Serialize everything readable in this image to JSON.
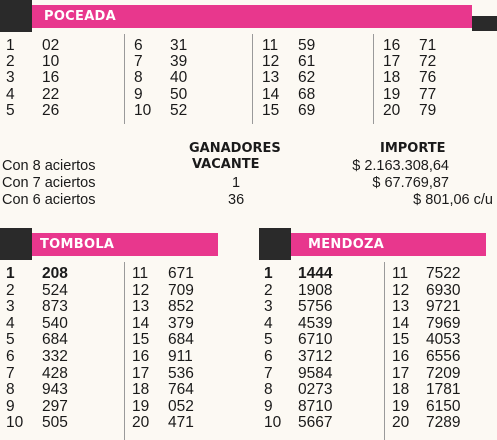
{
  "poceada": {
    "title": "POCEADA",
    "columns": [
      [
        [
          "1",
          "02"
        ],
        [
          "2",
          "10"
        ],
        [
          "3",
          "16"
        ],
        [
          "4",
          "22"
        ],
        [
          "5",
          "26"
        ]
      ],
      [
        [
          "6",
          "31"
        ],
        [
          "7",
          "39"
        ],
        [
          "8",
          "40"
        ],
        [
          "9",
          "50"
        ],
        [
          "10",
          "52"
        ]
      ],
      [
        [
          "11",
          "59"
        ],
        [
          "12",
          "61"
        ],
        [
          "13",
          "62"
        ],
        [
          "14",
          "68"
        ],
        [
          "15",
          "69"
        ]
      ],
      [
        [
          "16",
          "71"
        ],
        [
          "17",
          "72"
        ],
        [
          "18",
          "76"
        ],
        [
          "19",
          "77"
        ],
        [
          "20",
          "79"
        ]
      ]
    ]
  },
  "summary": {
    "ganadores_header": "GANADORES",
    "vacante_header": "VACANTE",
    "importe_header": "IMPORTE",
    "rows": [
      {
        "label": "Con 8 aciertos",
        "winners": "",
        "amount": "$ 2.163.308,64"
      },
      {
        "label": "Con 7 aciertos",
        "winners": "1",
        "amount": "$ 67.769,87"
      },
      {
        "label": "Con 6 aciertos",
        "winners": "36",
        "amount": "$ 801,06 c/u"
      }
    ]
  },
  "tombola": {
    "title": "TOMBOLA",
    "columns": [
      [
        [
          "1",
          "208"
        ],
        [
          "2",
          "524"
        ],
        [
          "3",
          "873"
        ],
        [
          "4",
          "540"
        ],
        [
          "5",
          "684"
        ],
        [
          "6",
          "332"
        ],
        [
          "7",
          "428"
        ],
        [
          "8",
          "943"
        ],
        [
          "9",
          "297"
        ],
        [
          "10",
          "505"
        ]
      ],
      [
        [
          "11",
          "671"
        ],
        [
          "12",
          "709"
        ],
        [
          "13",
          "852"
        ],
        [
          "14",
          "379"
        ],
        [
          "15",
          "684"
        ],
        [
          "16",
          "911"
        ],
        [
          "17",
          "536"
        ],
        [
          "18",
          "764"
        ],
        [
          "19",
          "052"
        ],
        [
          "20",
          "471"
        ]
      ]
    ]
  },
  "mendoza": {
    "title": "MENDOZA",
    "columns": [
      [
        [
          "1",
          "1444"
        ],
        [
          "2",
          "1908"
        ],
        [
          "3",
          "5756"
        ],
        [
          "4",
          "4539"
        ],
        [
          "5",
          "6710"
        ],
        [
          "6",
          "3712"
        ],
        [
          "7",
          "9584"
        ],
        [
          "8",
          "0273"
        ],
        [
          "9",
          "8710"
        ],
        [
          "10",
          "5667"
        ]
      ],
      [
        [
          "11",
          "7522"
        ],
        [
          "12",
          "6930"
        ],
        [
          "13",
          "9721"
        ],
        [
          "14",
          "7969"
        ],
        [
          "15",
          "4053"
        ],
        [
          "16",
          "6556"
        ],
        [
          "17",
          "7209"
        ],
        [
          "18",
          "1781"
        ],
        [
          "19",
          "6150"
        ],
        [
          "20",
          "7289"
        ]
      ]
    ]
  },
  "colors": {
    "accent_pink": "#e8378d",
    "header_dark": "#2a2a2a",
    "background": "#fcf9f3"
  }
}
